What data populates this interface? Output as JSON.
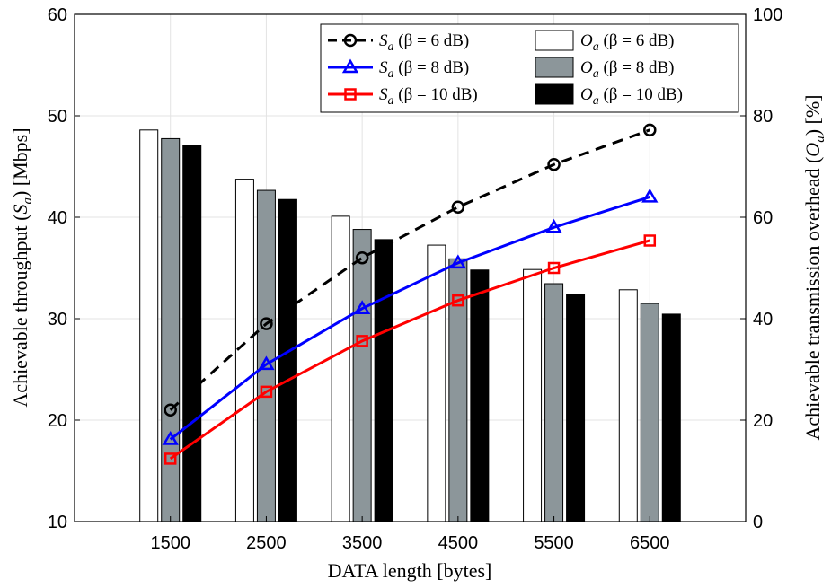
{
  "chart_data": {
    "type": "bar+line",
    "categories": [
      "1500",
      "2500",
      "3500",
      "4500",
      "5500",
      "6500"
    ],
    "xlabel": "DATA length [bytes]",
    "ylabel_left": "Achievable throughput (S_a) [Mbps]",
    "ylabel_right": "Achievable transmission overhead (O_a) [%]",
    "ylim_left": [
      10,
      60
    ],
    "ylim_right": [
      0,
      100
    ],
    "yticks_left": [
      10,
      20,
      30,
      40,
      50,
      60
    ],
    "yticks_right": [
      0,
      20,
      40,
      60,
      80,
      100
    ],
    "grid": true,
    "legend_position": "top-right",
    "line_series": [
      {
        "name": "S_a (β = 6 dB)",
        "color": "#000000",
        "dash": true,
        "marker": "circle",
        "values": [
          21.0,
          29.5,
          36.0,
          41.0,
          45.2,
          48.6
        ]
      },
      {
        "name": "S_a (β = 8 dB)",
        "color": "#0000ff",
        "dash": false,
        "marker": "triangle",
        "values": [
          18.1,
          25.5,
          31.0,
          35.5,
          39.0,
          42.0
        ]
      },
      {
        "name": "S_a (β = 10 dB)",
        "color": "#ff0000",
        "dash": false,
        "marker": "square",
        "values": [
          16.2,
          22.8,
          27.8,
          31.8,
          35.0,
          37.7
        ]
      }
    ],
    "bar_series": [
      {
        "name": "O_a (β = 6 dB)",
        "color": "#ffffff",
        "values": [
          77.2,
          67.5,
          60.2,
          54.5,
          49.7,
          45.7
        ]
      },
      {
        "name": "O_a (β = 8 dB)",
        "color": "#8c969a",
        "values": [
          75.5,
          65.3,
          57.6,
          51.8,
          46.9,
          43.0
        ]
      },
      {
        "name": "O_a (β = 10 dB)",
        "color": "#000000",
        "values": [
          74.2,
          63.5,
          55.6,
          49.6,
          44.8,
          40.9
        ]
      }
    ]
  },
  "legend_labels": [
    {
      "sym": "S",
      "sub": "a",
      "rest": " (β = 6 dB)"
    },
    {
      "sym": "S",
      "sub": "a",
      "rest": " (β = 8 dB)"
    },
    {
      "sym": "S",
      "sub": "a",
      "rest": " (β = 10 dB)"
    },
    {
      "sym": "O",
      "sub": "a",
      "rest": " (β = 6 dB)"
    },
    {
      "sym": "O",
      "sub": "a",
      "rest": " (β = 8 dB)"
    },
    {
      "sym": "O",
      "sub": "a",
      "rest": " (β = 10 dB)"
    }
  ]
}
